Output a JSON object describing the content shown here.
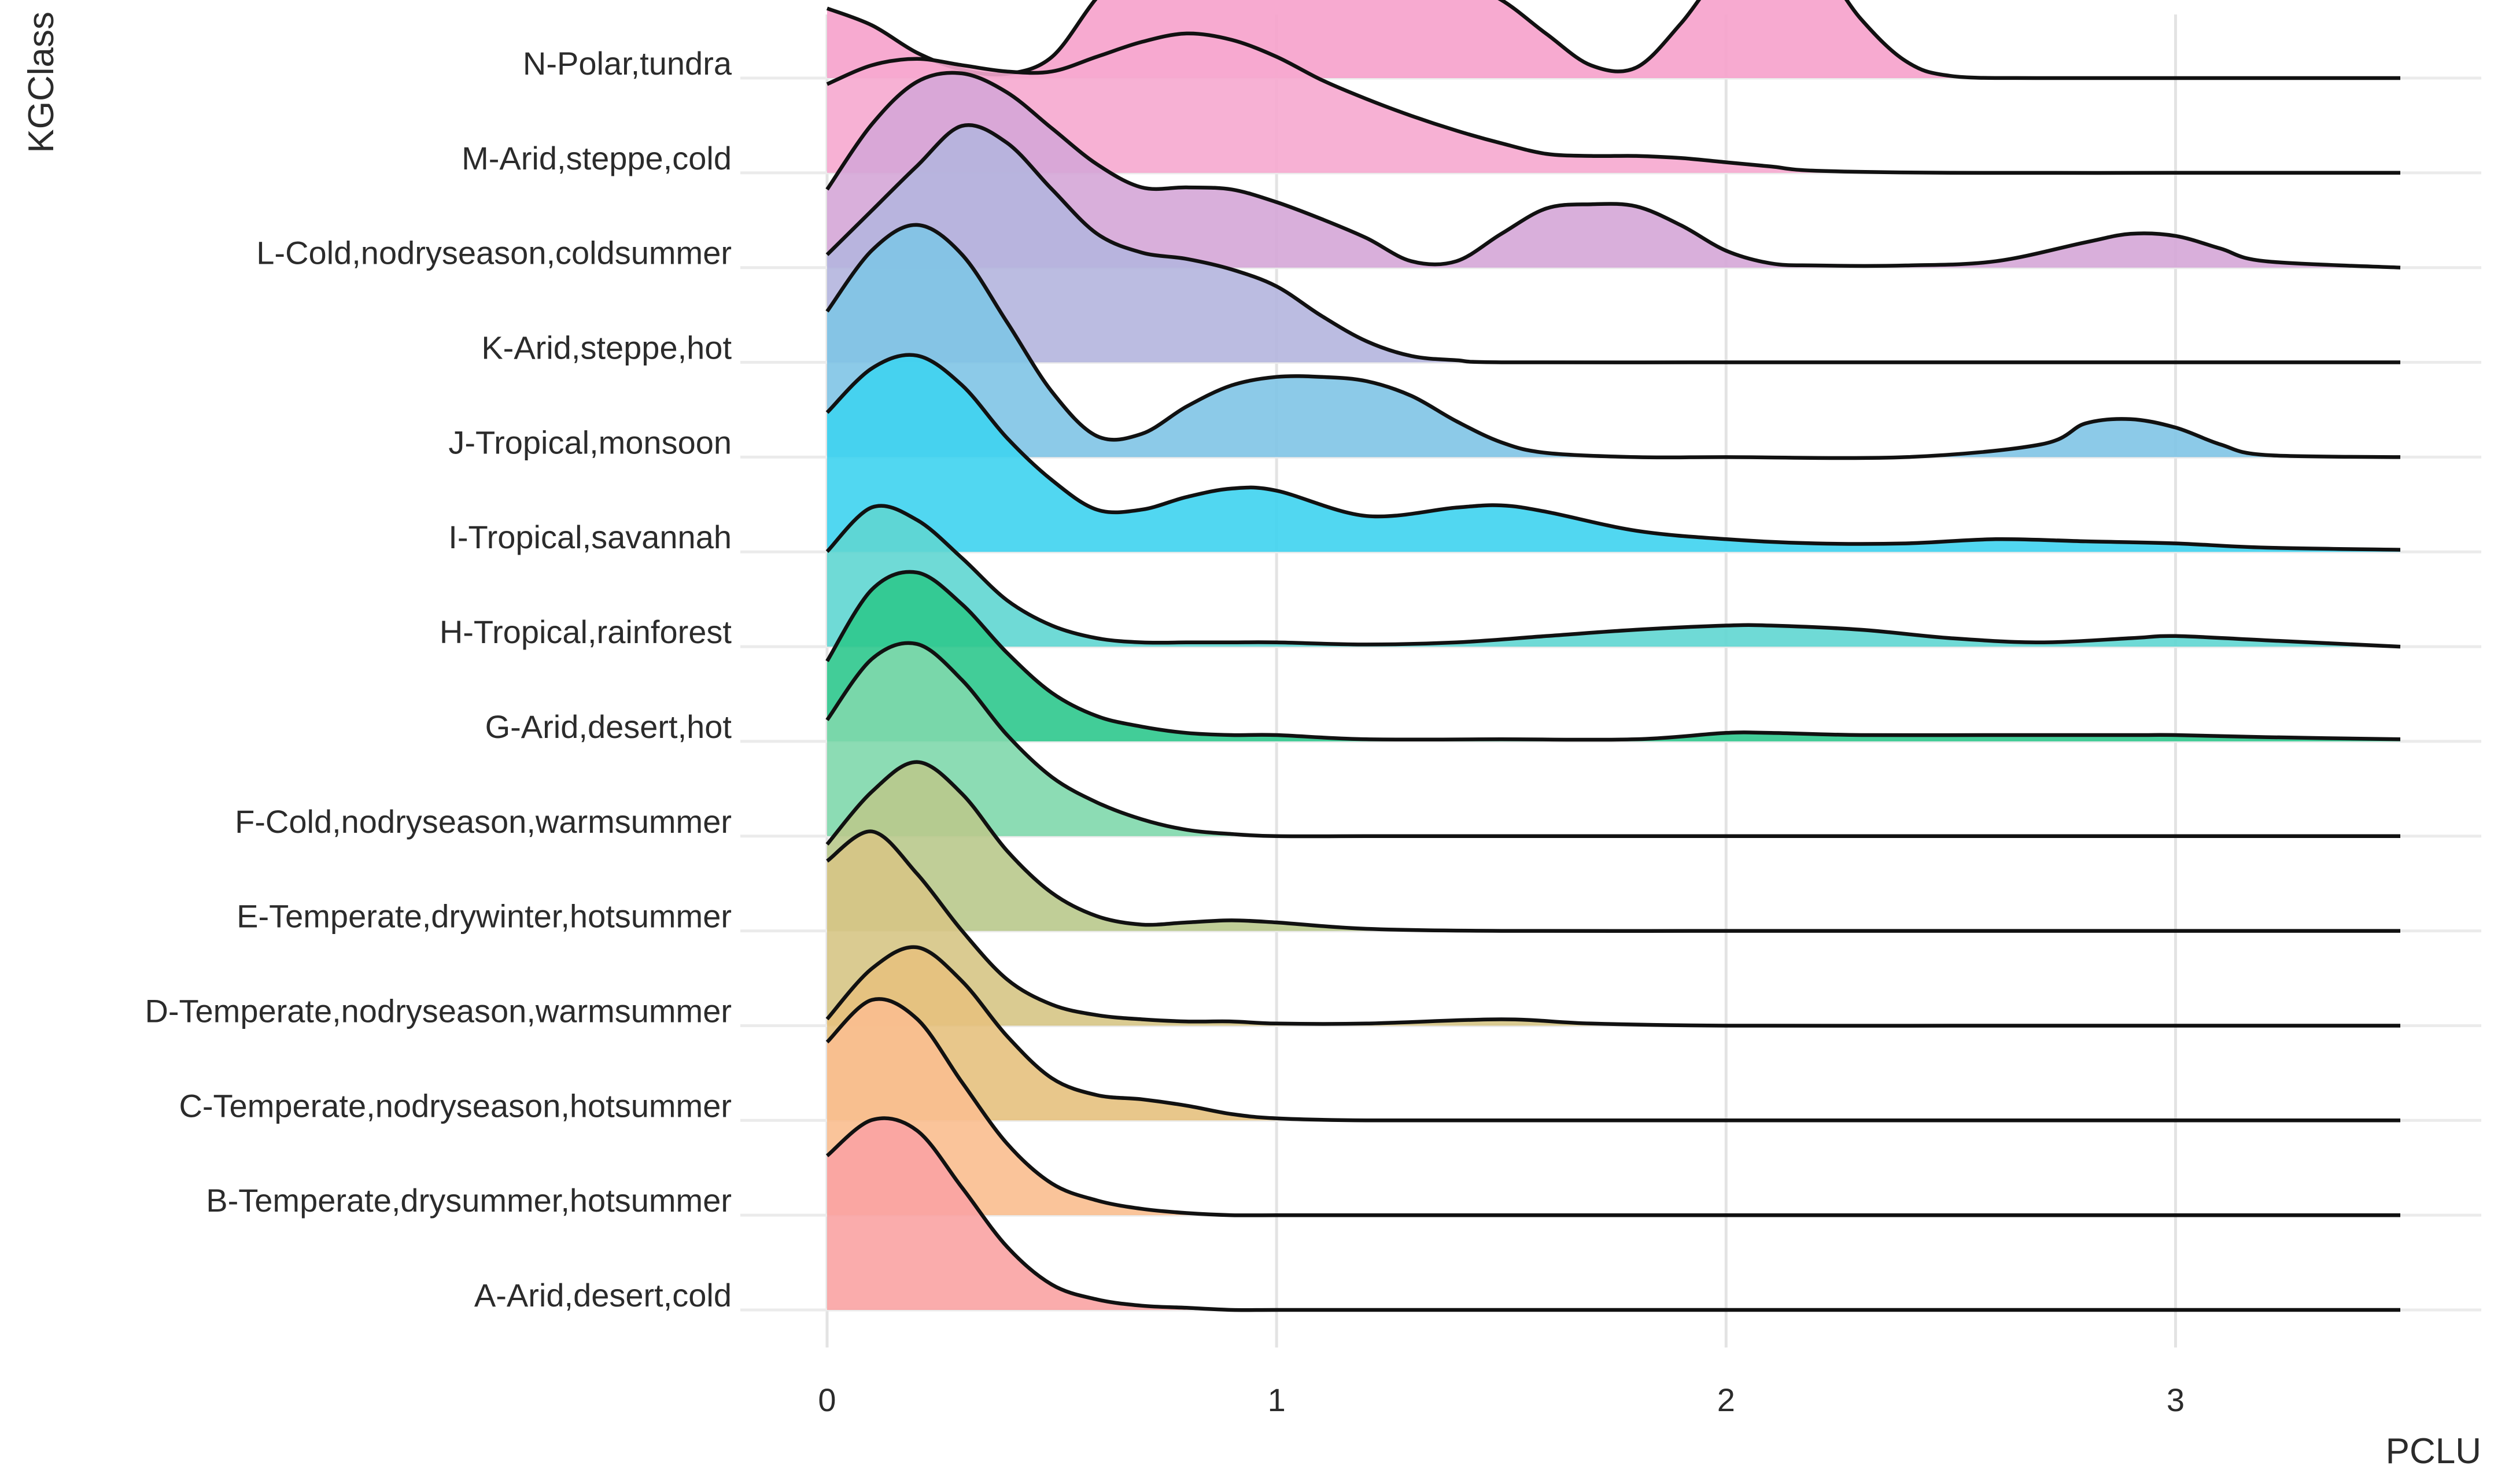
{
  "chart_data": {
    "type": "ridgeline",
    "xlabel": "PCLU",
    "ylabel": "KGClass",
    "xlim": [
      0,
      3.5
    ],
    "x_ticks": [
      0,
      1,
      2,
      3
    ],
    "x_tick_labels": [
      "0",
      "1",
      "2",
      "3"
    ],
    "grid": "vertical",
    "legend": "none",
    "series": [
      {
        "name": "A-Arid,desert,cold",
        "color": "#f9a3a3",
        "x": [
          0,
          0.1,
          0.2,
          0.3,
          0.4,
          0.5,
          0.6,
          0.7,
          0.8,
          0.9,
          1.0,
          1.2,
          1.5,
          2.0,
          2.5,
          3.0,
          3.5
        ],
        "density": [
          0.73,
          0.9,
          0.85,
          0.58,
          0.3,
          0.12,
          0.05,
          0.02,
          0.01,
          0,
          0,
          0,
          0,
          0,
          0,
          0,
          0
        ]
      },
      {
        "name": "B-Temperate,drysummer,hotsummer",
        "color": "#f9be8f",
        "x": [
          0,
          0.1,
          0.2,
          0.3,
          0.4,
          0.5,
          0.6,
          0.7,
          0.8,
          0.9,
          1.0,
          1.2,
          1.5,
          2.0,
          2.5,
          3.0,
          3.5
        ],
        "density": [
          0.82,
          1.02,
          0.93,
          0.63,
          0.34,
          0.15,
          0.07,
          0.03,
          0.01,
          0,
          0,
          0,
          0,
          0,
          0,
          0,
          0
        ]
      },
      {
        "name": "C-Temperate,nodryseason,hotsummer",
        "color": "#e6c17e",
        "x": [
          0,
          0.1,
          0.2,
          0.3,
          0.4,
          0.5,
          0.6,
          0.7,
          0.8,
          0.9,
          1.0,
          1.2,
          1.5,
          2.0,
          2.5,
          3.0,
          3.5
        ],
        "density": [
          0.48,
          0.72,
          0.82,
          0.66,
          0.4,
          0.2,
          0.12,
          0.1,
          0.07,
          0.03,
          0.01,
          0,
          0,
          0,
          0,
          0,
          0
        ]
      },
      {
        "name": "D-Temperate,nodryseason,warmsummer",
        "color": "#d6c585",
        "x": [
          0,
          0.1,
          0.2,
          0.3,
          0.4,
          0.5,
          0.6,
          0.7,
          0.8,
          0.9,
          1.0,
          1.2,
          1.5,
          1.7,
          2.0,
          2.5,
          3.0,
          3.5
        ],
        "density": [
          0.78,
          0.92,
          0.72,
          0.45,
          0.22,
          0.1,
          0.05,
          0.03,
          0.02,
          0.02,
          0.01,
          0.01,
          0.03,
          0.01,
          0,
          0,
          0,
          0
        ]
      },
      {
        "name": "E-Temperate,drywinter,hotsummer",
        "color": "#b9c98c",
        "x": [
          0,
          0.1,
          0.2,
          0.3,
          0.4,
          0.5,
          0.6,
          0.7,
          0.8,
          0.9,
          1.0,
          1.2,
          1.5,
          2.0,
          2.5,
          3.0,
          3.5
        ],
        "density": [
          0.41,
          0.66,
          0.8,
          0.65,
          0.38,
          0.18,
          0.07,
          0.03,
          0.04,
          0.05,
          0.04,
          0.01,
          0,
          0,
          0,
          0,
          0
        ]
      },
      {
        "name": "F-Cold,nodryseason,warmsummer",
        "color": "#7fd8ac",
        "x": [
          0,
          0.1,
          0.2,
          0.3,
          0.4,
          0.5,
          0.6,
          0.7,
          0.8,
          0.9,
          1.0,
          1.2,
          1.5,
          2.0,
          2.5,
          3.0,
          3.5
        ],
        "density": [
          0.55,
          0.84,
          0.91,
          0.74,
          0.48,
          0.28,
          0.16,
          0.08,
          0.03,
          0.01,
          0,
          0,
          0,
          0,
          0,
          0,
          0
        ]
      },
      {
        "name": "G-Arid,desert,hot",
        "color": "#2ec88d",
        "x": [
          0,
          0.1,
          0.2,
          0.3,
          0.4,
          0.5,
          0.6,
          0.7,
          0.8,
          0.9,
          1.0,
          1.2,
          1.5,
          1.8,
          2.0,
          2.1,
          2.3,
          2.6,
          2.9,
          3.0,
          3.2,
          3.5
        ],
        "density": [
          0.38,
          0.72,
          0.8,
          0.65,
          0.42,
          0.23,
          0.12,
          0.07,
          0.04,
          0.03,
          0.03,
          0.01,
          0.01,
          0.01,
          0.04,
          0.04,
          0.03,
          0.03,
          0.03,
          0.03,
          0.02,
          0.01
        ]
      },
      {
        "name": "H-Tropical,rainforest",
        "color": "#5fd6d1",
        "x": [
          0,
          0.1,
          0.2,
          0.3,
          0.4,
          0.5,
          0.6,
          0.7,
          0.8,
          0.9,
          1.0,
          1.2,
          1.4,
          1.6,
          1.8,
          2.0,
          2.1,
          2.3,
          2.5,
          2.7,
          2.9,
          3.0,
          3.2,
          3.5
        ],
        "density": [
          0.45,
          0.66,
          0.6,
          0.42,
          0.22,
          0.1,
          0.04,
          0.02,
          0.02,
          0.02,
          0.02,
          0.01,
          0.02,
          0.05,
          0.08,
          0.1,
          0.1,
          0.08,
          0.04,
          0.02,
          0.04,
          0.05,
          0.03,
          0
        ]
      },
      {
        "name": "I-Tropical,savannah",
        "color": "#3ed3ef",
        "x": [
          0,
          0.1,
          0.2,
          0.3,
          0.4,
          0.5,
          0.6,
          0.7,
          0.8,
          0.9,
          1.0,
          1.2,
          1.4,
          1.5,
          1.6,
          1.8,
          2.0,
          2.2,
          2.4,
          2.6,
          2.8,
          3.0,
          3.2,
          3.5
        ],
        "density": [
          0.66,
          0.87,
          0.93,
          0.79,
          0.54,
          0.34,
          0.2,
          0.2,
          0.26,
          0.3,
          0.29,
          0.17,
          0.21,
          0.22,
          0.19,
          0.1,
          0.06,
          0.04,
          0.04,
          0.06,
          0.05,
          0.04,
          0.02,
          0.01
        ]
      },
      {
        "name": "J-Tropical,monsoon",
        "color": "#80c4e6",
        "x": [
          0,
          0.1,
          0.2,
          0.3,
          0.4,
          0.5,
          0.6,
          0.7,
          0.8,
          0.9,
          1.0,
          1.1,
          1.2,
          1.3,
          1.4,
          1.5,
          1.6,
          1.8,
          2.0,
          2.4,
          2.7,
          2.8,
          2.9,
          3.0,
          3.1,
          3.2,
          3.5
        ],
        "density": [
          0.69,
          0.98,
          1.1,
          0.96,
          0.64,
          0.31,
          0.1,
          0.11,
          0.24,
          0.34,
          0.38,
          0.38,
          0.36,
          0.29,
          0.17,
          0.07,
          0.02,
          0,
          0,
          0,
          0.06,
          0.16,
          0.18,
          0.14,
          0.06,
          0.01,
          0
        ]
      },
      {
        "name": "K-Arid,steppe,hot",
        "color": "#b4b5de",
        "x": [
          0,
          0.1,
          0.2,
          0.3,
          0.4,
          0.5,
          0.6,
          0.7,
          0.8,
          0.9,
          1.0,
          1.1,
          1.2,
          1.3,
          1.4,
          1.5,
          2.0,
          2.5,
          3.0,
          3.5
        ],
        "density": [
          0.51,
          0.72,
          0.93,
          1.12,
          1.04,
          0.82,
          0.61,
          0.52,
          0.49,
          0.44,
          0.36,
          0.22,
          0.1,
          0.03,
          0.01,
          0,
          0,
          0,
          0,
          0
        ]
      },
      {
        "name": "L-Cold,nodryseason,coldsummer",
        "color": "#d5a6d7",
        "x": [
          0,
          0.1,
          0.2,
          0.3,
          0.4,
          0.5,
          0.6,
          0.7,
          0.8,
          0.9,
          1.0,
          1.1,
          1.2,
          1.3,
          1.4,
          1.5,
          1.6,
          1.7,
          1.8,
          1.9,
          2.0,
          2.1,
          2.2,
          2.4,
          2.6,
          2.8,
          2.9,
          3.0,
          3.1,
          3.2,
          3.5
        ],
        "density": [
          0.37,
          0.68,
          0.88,
          0.92,
          0.83,
          0.66,
          0.49,
          0.38,
          0.38,
          0.37,
          0.31,
          0.23,
          0.14,
          0.03,
          0.03,
          0.16,
          0.28,
          0.3,
          0.29,
          0.2,
          0.08,
          0.02,
          0.01,
          0.01,
          0.03,
          0.12,
          0.16,
          0.15,
          0.09,
          0.03,
          0
        ]
      },
      {
        "name": "M-Arid,steppe,cold",
        "color": "#f6a8cf",
        "x": [
          0,
          0.1,
          0.2,
          0.3,
          0.4,
          0.5,
          0.6,
          0.7,
          0.8,
          0.9,
          1.0,
          1.1,
          1.2,
          1.3,
          1.4,
          1.5,
          1.6,
          1.7,
          1.8,
          1.9,
          2.0,
          2.1,
          2.2,
          2.5,
          3.0,
          3.5
        ],
        "density": [
          0.42,
          0.51,
          0.54,
          0.51,
          0.48,
          0.48,
          0.55,
          0.62,
          0.66,
          0.63,
          0.55,
          0.44,
          0.35,
          0.27,
          0.2,
          0.14,
          0.09,
          0.08,
          0.08,
          0.07,
          0.05,
          0.03,
          0.01,
          0,
          0,
          0
        ]
      },
      {
        "name": "N-Polar,tundra",
        "color": "#f6a1cb",
        "x": [
          0,
          0.1,
          0.2,
          0.3,
          0.4,
          0.5,
          0.6,
          0.7,
          0.8,
          0.9,
          1.0,
          1.1,
          1.2,
          1.3,
          1.4,
          1.5,
          1.6,
          1.7,
          1.8,
          1.9,
          2.0,
          2.1,
          2.2,
          2.3,
          2.4,
          2.5,
          2.7,
          3.0,
          3.5
        ],
        "density": [
          0.33,
          0.25,
          0.12,
          0.04,
          0.02,
          0.1,
          0.38,
          0.6,
          0.64,
          0.6,
          0.54,
          0.52,
          0.51,
          0.49,
          0.46,
          0.37,
          0.21,
          0.06,
          0.05,
          0.26,
          0.53,
          0.63,
          0.56,
          0.28,
          0.08,
          0.01,
          0,
          0,
          0
        ]
      }
    ]
  }
}
